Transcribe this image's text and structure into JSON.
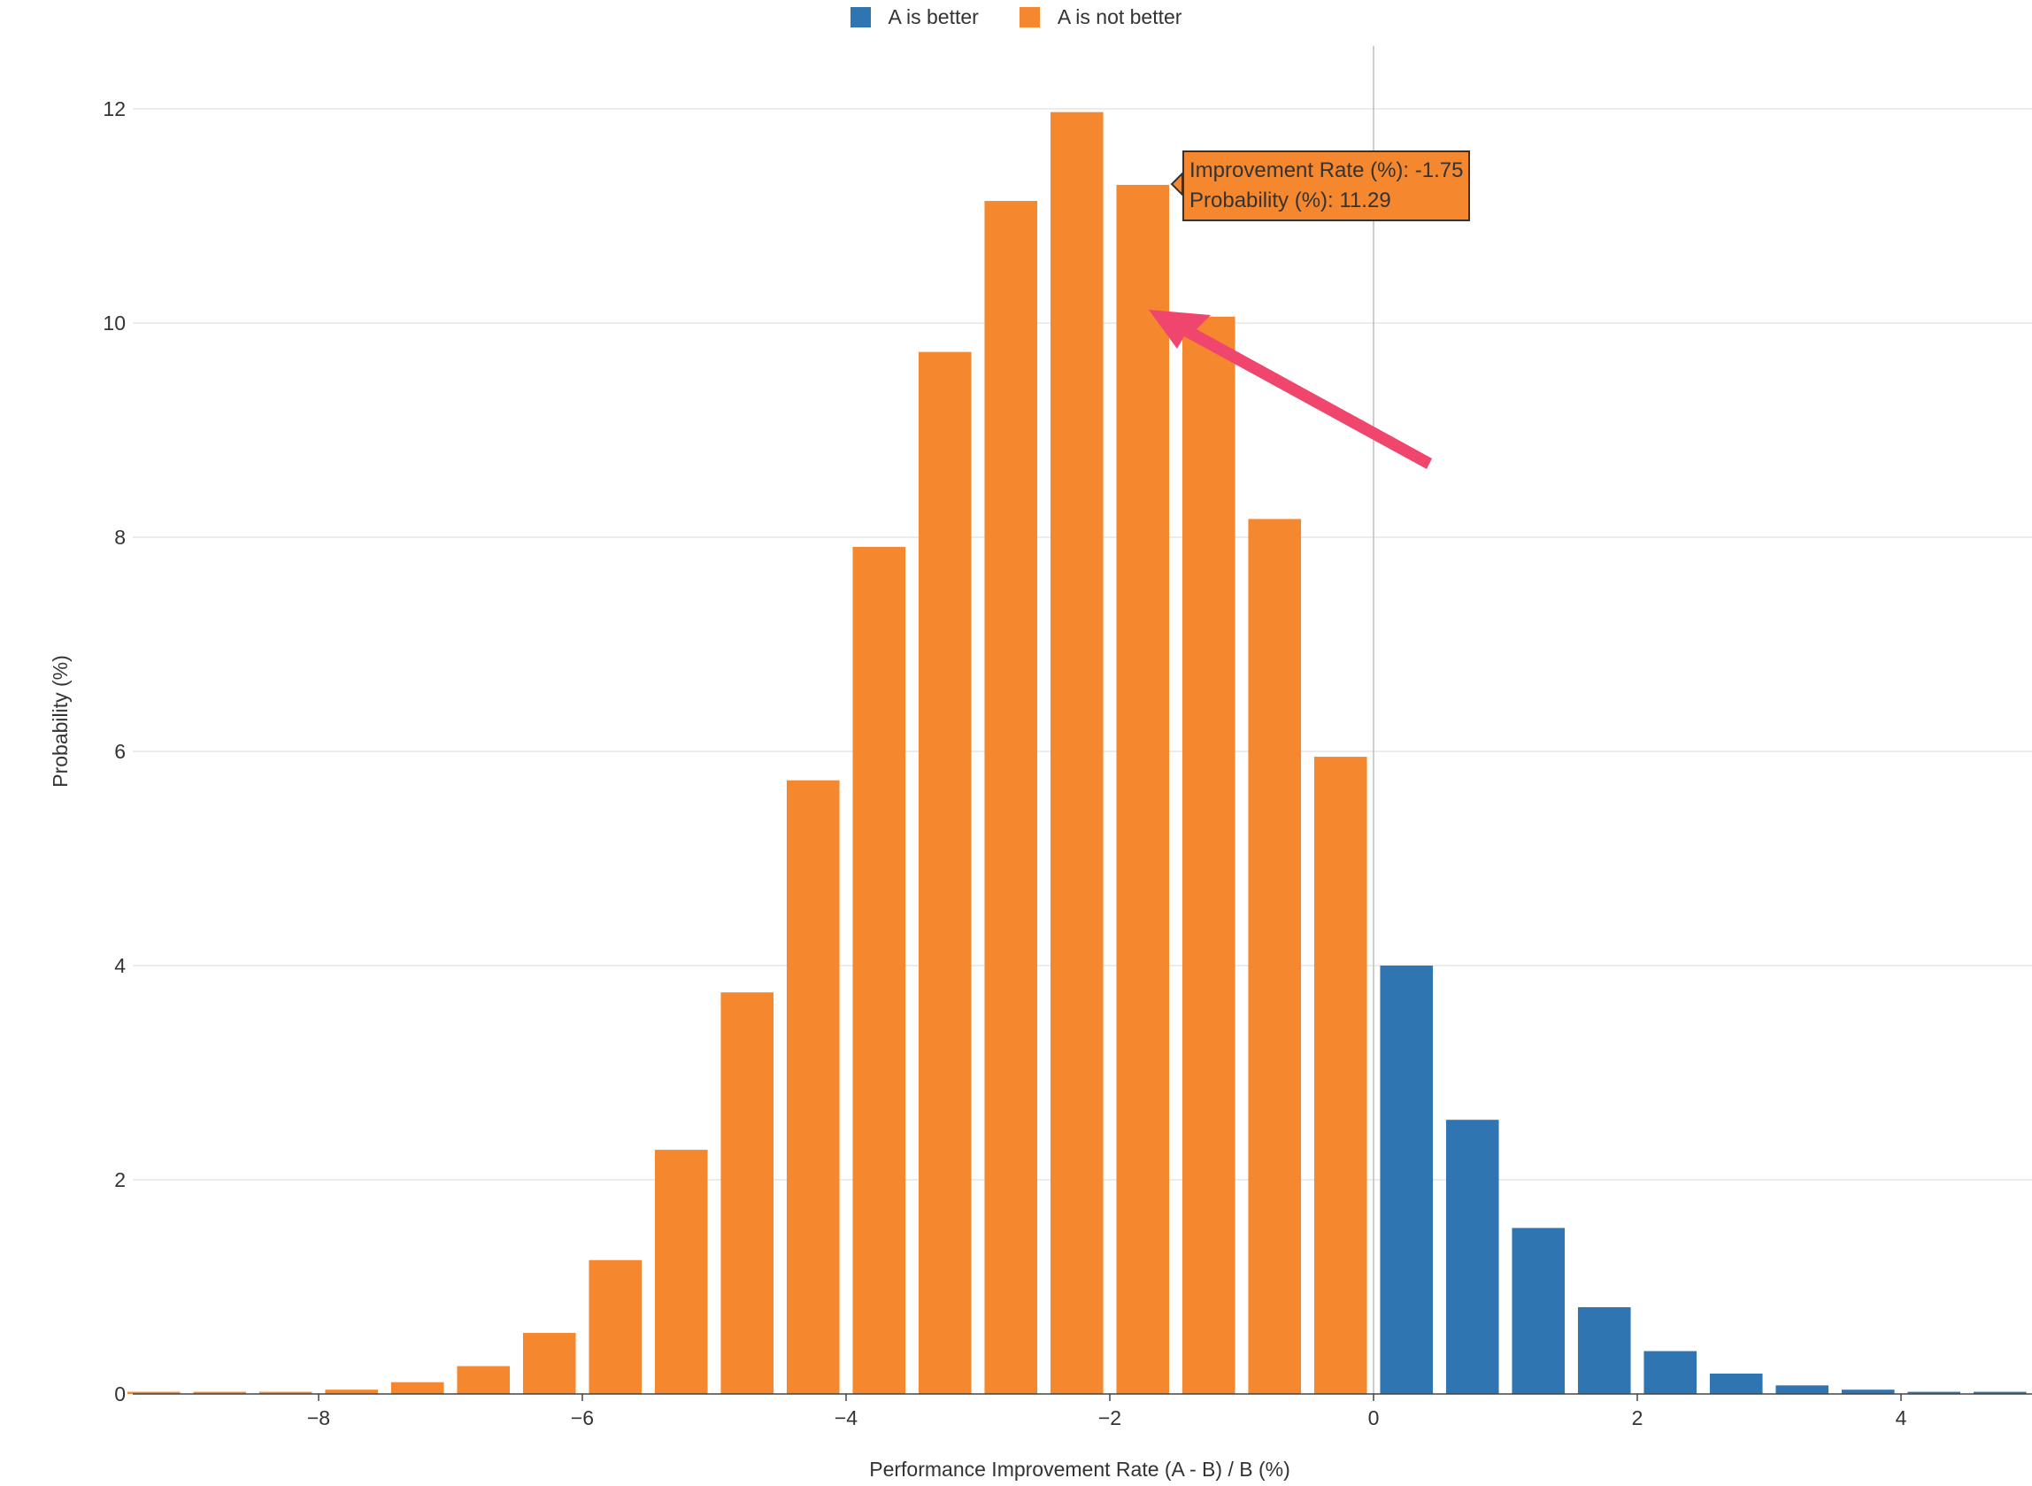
{
  "legend": [
    {
      "label": "A is better",
      "color": "#2e75b2"
    },
    {
      "label": "A is not better",
      "color": "#f5872f"
    }
  ],
  "tooltip": {
    "line1": "Improvement Rate (%): -1.75",
    "line2": "Probability (%): 11.29"
  },
  "chart_data": {
    "type": "bar",
    "xlabel": "Performance Improvement Rate (A - B) / B (%)",
    "ylabel": "Probability (%)",
    "xlim": [
      -9.5,
      5.0
    ],
    "ylim": [
      0,
      12.5
    ],
    "xticks": [
      -8,
      -6,
      -4,
      -2,
      0,
      2,
      4
    ],
    "yticks": [
      0,
      2,
      4,
      6,
      8,
      10,
      12
    ],
    "grid": "horizontal",
    "legend_position": "top-center",
    "reference_line_x": 0,
    "series": [
      {
        "name": "A is not better",
        "color": "#f5872f",
        "x": [
          -9.25,
          -8.75,
          -8.25,
          -7.75,
          -7.25,
          -6.75,
          -6.25,
          -5.75,
          -5.25,
          -4.75,
          -4.25,
          -3.75,
          -3.25,
          -2.75,
          -2.25,
          -1.75,
          -1.25,
          -0.75,
          -0.25
        ],
        "values": [
          0.02,
          0.02,
          0.02,
          0.04,
          0.11,
          0.26,
          0.57,
          1.25,
          2.28,
          3.75,
          5.73,
          7.91,
          9.73,
          11.14,
          11.97,
          11.29,
          10.06,
          8.17,
          5.95
        ]
      },
      {
        "name": "A is better",
        "color": "#2e75b2",
        "x": [
          0.25,
          0.75,
          1.25,
          1.75,
          2.25,
          2.75,
          3.25,
          3.75,
          4.25,
          4.75
        ],
        "values": [
          4.0,
          2.56,
          1.55,
          0.81,
          0.4,
          0.19,
          0.08,
          0.04,
          0.02,
          0.02
        ]
      }
    ],
    "highlight": {
      "x": -1.75,
      "y": 11.29
    }
  }
}
